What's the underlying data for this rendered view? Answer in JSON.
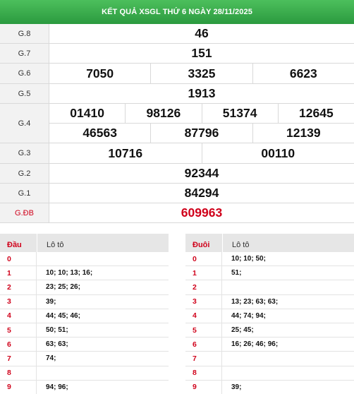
{
  "title": "KẾT QUẢ XSGL THỨ 6 NGÀY 28/11/2025",
  "prizes": [
    {
      "label": "G.8",
      "lines": [
        [
          "46"
        ]
      ]
    },
    {
      "label": "G.7",
      "lines": [
        [
          "151"
        ]
      ]
    },
    {
      "label": "G.6",
      "lines": [
        [
          "7050",
          "3325",
          "6623"
        ]
      ]
    },
    {
      "label": "G.5",
      "lines": [
        [
          "1913"
        ]
      ]
    },
    {
      "label": "G.4",
      "lines": [
        [
          "01410",
          "98126",
          "51374",
          "12645"
        ],
        [
          "46563",
          "87796",
          "12139"
        ]
      ]
    },
    {
      "label": "G.3",
      "lines": [
        [
          "10716",
          "00110"
        ]
      ]
    },
    {
      "label": "G.2",
      "lines": [
        [
          "92344"
        ]
      ]
    },
    {
      "label": "G.1",
      "lines": [
        [
          "84294"
        ]
      ]
    },
    {
      "label": "G.ĐB",
      "lines": [
        [
          "609963"
        ]
      ],
      "special": true
    }
  ],
  "loto_head": {
    "head_label": "Đầu",
    "value_label": "Lô tô",
    "rows": [
      {
        "key": "0",
        "values": ""
      },
      {
        "key": "1",
        "values": "10; 10; 13; 16;"
      },
      {
        "key": "2",
        "values": "23; 25; 26;"
      },
      {
        "key": "3",
        "values": "39;"
      },
      {
        "key": "4",
        "values": "44; 45; 46;"
      },
      {
        "key": "5",
        "values": "50; 51;"
      },
      {
        "key": "6",
        "values": "63; 63;"
      },
      {
        "key": "7",
        "values": "74;"
      },
      {
        "key": "8",
        "values": ""
      },
      {
        "key": "9",
        "values": "94; 96;"
      }
    ]
  },
  "loto_tail": {
    "head_label": "Đuôi",
    "value_label": "Lô tô",
    "rows": [
      {
        "key": "0",
        "values": "10; 10; 50;"
      },
      {
        "key": "1",
        "values": "51;"
      },
      {
        "key": "2",
        "values": ""
      },
      {
        "key": "3",
        "values": "13; 23; 63; 63;"
      },
      {
        "key": "4",
        "values": "44; 74; 94;"
      },
      {
        "key": "5",
        "values": "25; 45;"
      },
      {
        "key": "6",
        "values": "16; 26; 46; 96;"
      },
      {
        "key": "7",
        "values": ""
      },
      {
        "key": "8",
        "values": ""
      },
      {
        "key": "9",
        "values": "39;"
      }
    ]
  },
  "colors": {
    "header_green": "#2b9a3f",
    "special_red": "#d0021b"
  }
}
